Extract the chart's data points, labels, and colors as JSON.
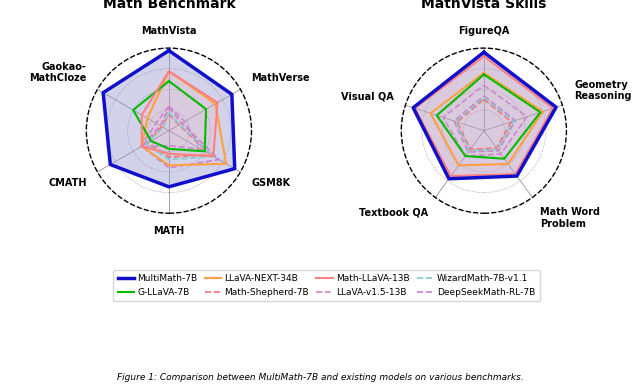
{
  "left_title": "Math Benchmark",
  "right_title": "MathVista Skills",
  "left_labels": [
    "MathVista",
    "MathVerse",
    "GSM8K",
    "MATH",
    "CMATH",
    "Gaokao-\nMathCloze"
  ],
  "right_labels": [
    "FigureQA",
    "Geometry\nReasoning",
    "Math Word\nProblem",
    "Textbook QA",
    "Visual QA"
  ],
  "left_data": {
    "MultiMath-7B": [
      0.97,
      0.88,
      0.92,
      0.68,
      0.82,
      0.92
    ],
    "Math-LLaVA-13B": [
      0.72,
      0.68,
      0.62,
      0.28,
      0.38,
      0.38
    ],
    "G-LLaVA-7B": [
      0.6,
      0.52,
      0.5,
      0.22,
      0.25,
      0.5
    ],
    "LLaVA-v1.5-13B": [
      0.3,
      0.22,
      0.45,
      0.18,
      0.4,
      0.18
    ],
    "LLaVA-NEXT-34B": [
      0.72,
      0.65,
      0.8,
      0.42,
      0.38,
      0.3
    ],
    "WizardMath-7B-v1.1": [
      0.22,
      0.15,
      0.62,
      0.35,
      0.32,
      0.08
    ],
    "Math-Shepherd-7B": [
      0.2,
      0.14,
      0.58,
      0.32,
      0.3,
      0.1
    ],
    "DeepSeekMath-RL-7B": [
      0.28,
      0.18,
      0.7,
      0.45,
      0.38,
      0.12
    ]
  },
  "right_data": {
    "MultiMath-7B": [
      0.95,
      0.92,
      0.68,
      0.72,
      0.9
    ],
    "Math-LLaVA-13B": [
      0.9,
      0.88,
      0.65,
      0.68,
      0.88
    ],
    "G-LLaVA-7B": [
      0.68,
      0.72,
      0.42,
      0.38,
      0.6
    ],
    "LLaVA-v1.5-13B": [
      0.55,
      0.55,
      0.35,
      0.38,
      0.52
    ],
    "LLaVA-NEXT-34B": [
      0.7,
      0.75,
      0.5,
      0.52,
      0.68
    ],
    "WizardMath-7B-v1.1": [
      0.4,
      0.38,
      0.28,
      0.3,
      0.36
    ],
    "Math-Shepherd-7B": [
      0.38,
      0.35,
      0.26,
      0.28,
      0.34
    ],
    "DeepSeekMath-RL-7B": [
      0.42,
      0.4,
      0.3,
      0.32,
      0.38
    ]
  },
  "series_styles": {
    "MultiMath-7B": {
      "color": "#1010CC",
      "lw": 2.5,
      "ls": "-",
      "zorder": 10
    },
    "Math-LLaVA-13B": {
      "color": "#FF8080",
      "lw": 1.5,
      "ls": "-",
      "zorder": 6
    },
    "G-LLaVA-7B": {
      "color": "#00BB00",
      "lw": 1.5,
      "ls": "-",
      "zorder": 6
    },
    "LLaVA-v1.5-13B": {
      "color": "#CC88CC",
      "lw": 1.2,
      "ls": "--",
      "zorder": 4
    },
    "LLaVA-NEXT-34B": {
      "color": "#FFA040",
      "lw": 1.5,
      "ls": "-",
      "zorder": 6
    },
    "WizardMath-7B-v1.1": {
      "color": "#80CCCC",
      "lw": 1.2,
      "ls": "--",
      "zorder": 4
    },
    "Math-Shepherd-7B": {
      "color": "#FF7070",
      "lw": 1.2,
      "ls": "--",
      "zorder": 4
    },
    "DeepSeekMath-RL-7B": {
      "color": "#CC80CC",
      "lw": 1.2,
      "ls": "--",
      "zorder": 4
    }
  },
  "fills": {
    "MultiMath-7B": {
      "color": "#9090CC",
      "alpha": 0.4
    },
    "Math-LLaVA-13B": {
      "color": "#FFAAAA",
      "alpha": 0.18
    }
  },
  "legend_order": [
    "MultiMath-7B",
    "G-LLaVA-7B",
    "LLaVA-NEXT-34B",
    "Math-Shepherd-7B",
    "Math-LLaVA-13B",
    "LLaVA-v1.5-13B",
    "WizardMath-7B-v1.1",
    "DeepSeekMath-RL-7B"
  ],
  "grid_levels": [
    0.25,
    0.5,
    0.75,
    1.0
  ],
  "label_fontsize": 7,
  "title_fontsize": 10
}
